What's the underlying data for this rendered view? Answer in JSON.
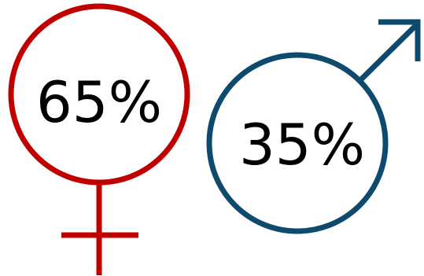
{
  "female": {
    "label": "65%",
    "value": 65,
    "color": "#c00000",
    "icon": "venus-icon"
  },
  "male": {
    "label": "35%",
    "value": 35,
    "color": "#0e4a6e",
    "icon": "mars-icon"
  }
}
